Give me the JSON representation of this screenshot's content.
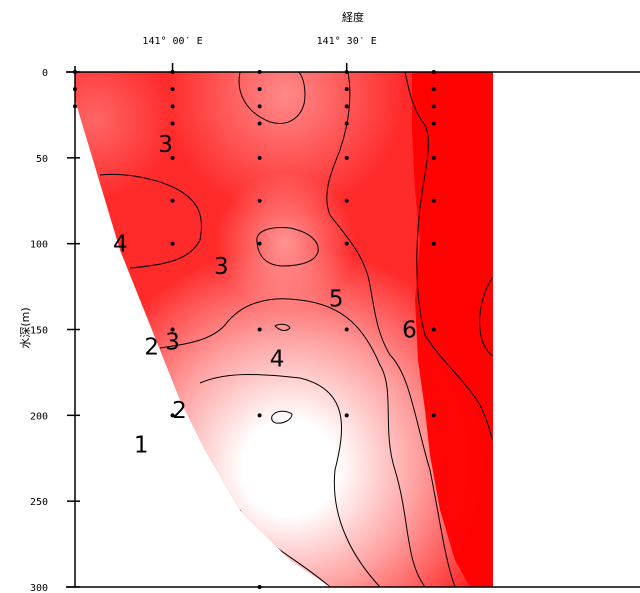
{
  "chart_data": {
    "type": "heatmap",
    "title": "",
    "xlabel": "経度",
    "ylabel": "水深(m)",
    "x_ticks": [
      {
        "value": 141.0,
        "label": "141° 00′ E"
      },
      {
        "value": 141.5,
        "label": "141° 30′ E"
      }
    ],
    "xlim": [
      140.72,
      141.92
    ],
    "ylim": [
      0,
      300
    ],
    "y_ticks": [
      0,
      50,
      100,
      150,
      200,
      250,
      300
    ],
    "colormap": {
      "low_color": "#ffffff",
      "high_color": "#ff0000"
    },
    "contour_levels": [
      1,
      2,
      3,
      4,
      5,
      6
    ],
    "contour_labels": [
      {
        "text": "3",
        "x": 140.98,
        "depth": 42
      },
      {
        "text": "4",
        "x": 140.85,
        "depth": 100
      },
      {
        "text": "3",
        "x": 141.14,
        "depth": 113
      },
      {
        "text": "5",
        "x": 141.47,
        "depth": 132
      },
      {
        "text": "6",
        "x": 141.68,
        "depth": 150
      },
      {
        "text": "3",
        "x": 141.0,
        "depth": 157
      },
      {
        "text": "2",
        "x": 140.94,
        "depth": 160
      },
      {
        "text": "4",
        "x": 141.3,
        "depth": 167
      },
      {
        "text": "2",
        "x": 141.02,
        "depth": 197
      },
      {
        "text": "1",
        "x": 140.91,
        "depth": 217
      }
    ],
    "stations": [
      {
        "x": 140.72,
        "depths": [
          0,
          10,
          20
        ]
      },
      {
        "x": 141.0,
        "depths": [
          0,
          10,
          20,
          30,
          50,
          75,
          100,
          150,
          200
        ]
      },
      {
        "x": 141.25,
        "depths": [
          0,
          10,
          20,
          30,
          50,
          75,
          100,
          150,
          200,
          300
        ]
      },
      {
        "x": 141.5,
        "depths": [
          0,
          10,
          20,
          30,
          50,
          75,
          100,
          150,
          200
        ]
      },
      {
        "x": 141.75,
        "depths": [
          0,
          10,
          20,
          30,
          50,
          75,
          100,
          150,
          200
        ]
      }
    ],
    "grid": false,
    "legend": "none"
  }
}
